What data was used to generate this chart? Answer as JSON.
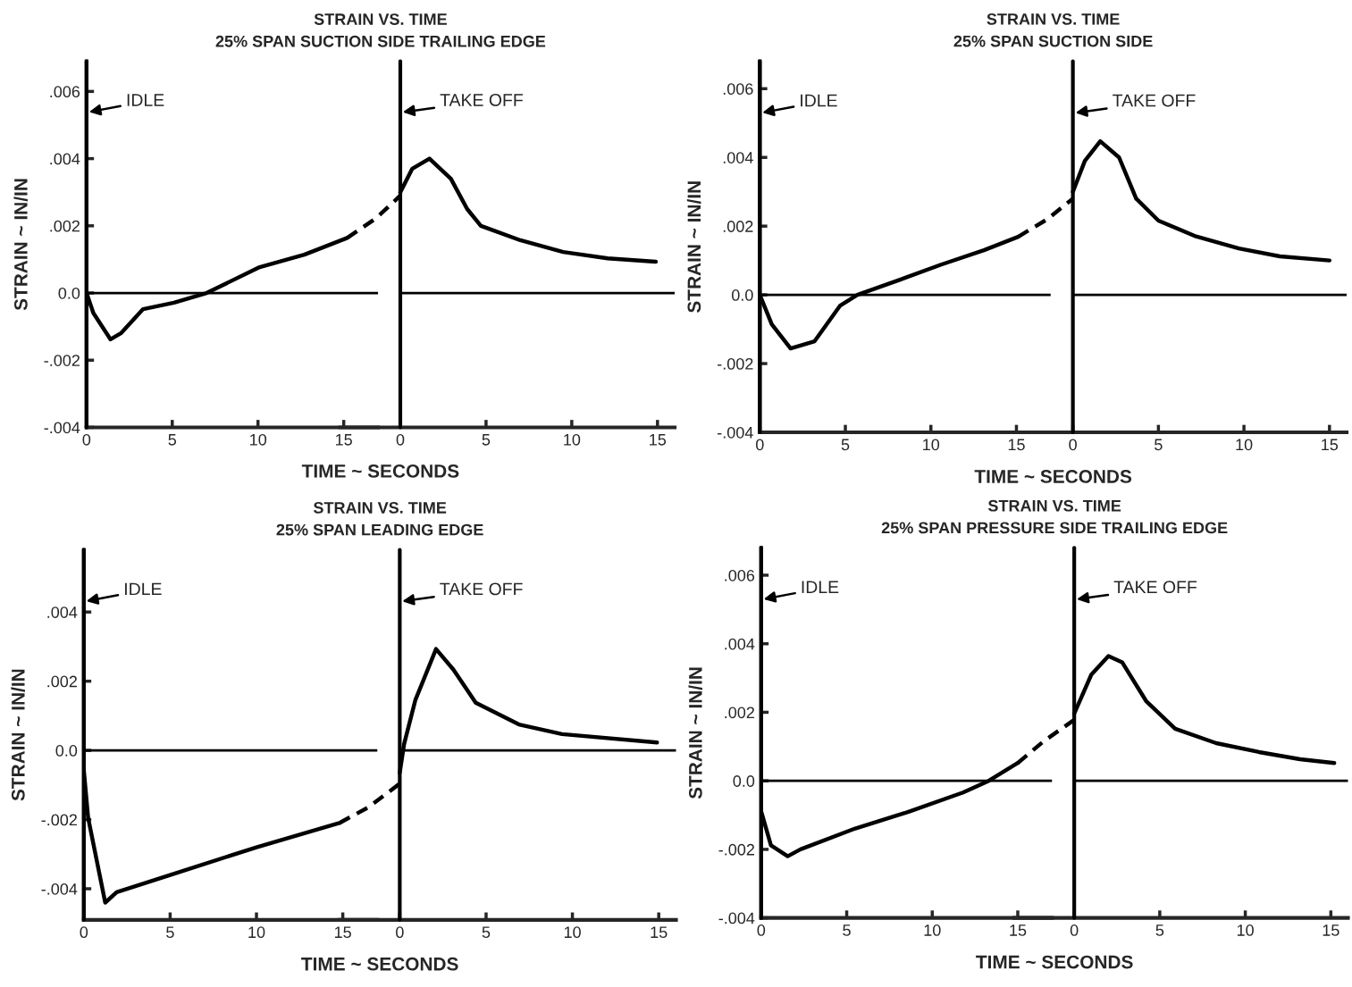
{
  "chart_data": [
    {
      "type": "line",
      "title": "STRAIN VS. TIME",
      "subtitle": "25% SPAN SUCTION SIDE TRAILING EDGE",
      "xlabel": "TIME ~ SECONDS",
      "ylabel": "STRAIN ~ IN/IN",
      "xlim": [
        0,
        17
      ],
      "ylim": [
        -0.004,
        0.0069
      ],
      "xticks": [
        0,
        5,
        10,
        15
      ],
      "yticks": [
        {
          "value": 0.006,
          "label": ".006"
        },
        {
          "value": 0.004,
          "label": ".004"
        },
        {
          "value": 0.002,
          "label": ".002"
        },
        {
          "value": 0,
          "label": "0.0"
        },
        {
          "value": -0.002,
          "label": "-.002"
        },
        {
          "value": -0.004,
          "label": "-.004"
        }
      ],
      "ref_lines": [
        {
          "axis": "y",
          "value": 0
        },
        {
          "axis": "x",
          "value": 0,
          "label": "IDLE"
        }
      ],
      "series": [
        {
          "color": "#000000",
          "line_style": "solid",
          "x": [
            0,
            0.4,
            1.4,
            2.0,
            3.3,
            5.1,
            7.0,
            10.1,
            12.7,
            15.2
          ],
          "values": [
            0,
            -0.0006,
            -0.00138,
            -0.0012,
            -0.00048,
            -0.00029,
            0,
            0.00077,
            0.00114,
            0.00164
          ]
        }
      ]
    },
    {
      "type": "line",
      "xlim": [
        -3.5,
        16
      ],
      "ylim": [
        -0.004,
        0.0069
      ],
      "xticks": [
        0,
        5,
        10,
        15
      ],
      "tick_labels": "x",
      "ref_lines": [
        {
          "axis": "y",
          "value": 0
        },
        {
          "axis": "x",
          "value": 0,
          "label": "TAKE OFF"
        }
      ],
      "series": [
        {
          "color": "#000000",
          "line_style": "dashed",
          "x": [
            -3.1,
            -1.4,
            0
          ],
          "values": [
            0.00164,
            0.00223,
            0.0029
          ]
        },
        {
          "color": "#000000",
          "line_style": "solid",
          "x": [
            0,
            0.7,
            1.7,
            2.95,
            3.9,
            4.7,
            7.0,
            9.5,
            12.1,
            14.9
          ],
          "values": [
            0.003,
            0.0037,
            0.004,
            0.0034,
            0.0025,
            0.002,
            0.00157,
            0.00122,
            0.00103,
            0.00093
          ]
        }
      ]
    },
    {
      "type": "line",
      "title": "STRAIN VS. TIME",
      "subtitle": "25% SPAN SUCTION SIDE",
      "xlabel": "TIME ~ SECONDS",
      "ylabel": "STRAIN ~ IN/IN",
      "xlim": [
        0,
        17
      ],
      "ylim": [
        -0.004,
        0.0068
      ],
      "xticks": [
        0,
        5,
        10,
        15
      ],
      "yticks": [
        {
          "value": 0.006,
          "label": ".006"
        },
        {
          "value": 0.004,
          "label": ".004"
        },
        {
          "value": 0.002,
          "label": ".002"
        },
        {
          "value": 0,
          "label": "0.0"
        },
        {
          "value": -0.002,
          "label": "-.002"
        },
        {
          "value": -0.004,
          "label": "-.004"
        }
      ],
      "ref_lines": [
        {
          "axis": "y",
          "value": 0
        },
        {
          "axis": "x",
          "value": 0,
          "label": "IDLE"
        }
      ],
      "series": [
        {
          "color": "#000000",
          "line_style": "solid",
          "x": [
            0,
            0.7,
            1.8,
            3.2,
            4.7,
            5.7,
            8.2,
            10.6,
            13.1,
            15.1
          ],
          "values": [
            0,
            -0.00086,
            -0.00156,
            -0.00135,
            -0.00031,
            0,
            0.00044,
            0.00088,
            0.0013,
            0.00169
          ]
        }
      ]
    },
    {
      "type": "line",
      "xlim": [
        -3.5,
        16
      ],
      "ylim": [
        -0.004,
        0.0068
      ],
      "xticks": [
        0,
        5,
        10,
        15
      ],
      "tick_labels": "x",
      "ref_lines": [
        {
          "axis": "y",
          "value": 0
        },
        {
          "axis": "x",
          "value": 0,
          "label": "TAKE OFF"
        }
      ],
      "series": [
        {
          "color": "#000000",
          "line_style": "dashed",
          "x": [
            -3.2,
            -1.5,
            0
          ],
          "values": [
            0.00169,
            0.0022,
            0.0028
          ]
        },
        {
          "color": "#000000",
          "line_style": "solid",
          "x": [
            0,
            0.7,
            1.6,
            2.7,
            3.7,
            5.0,
            7.2,
            9.7,
            12.1,
            15.0
          ],
          "values": [
            0.003,
            0.0039,
            0.00447,
            0.004,
            0.0028,
            0.00216,
            0.0017,
            0.00135,
            0.00112,
            0.001
          ]
        }
      ]
    },
    {
      "type": "line",
      "title": "STRAIN VS. TIME",
      "subtitle": "25% SPAN LEADING EDGE",
      "xlabel": "TIME ~ SECONDS",
      "ylabel": "STRAIN ~ IN/IN",
      "xlim": [
        0,
        17
      ],
      "ylim": [
        -0.0049,
        0.0058
      ],
      "xticks": [
        0,
        5,
        10,
        15
      ],
      "yticks": [
        {
          "value": 0.004,
          "label": ".004"
        },
        {
          "value": 0.002,
          "label": ".002"
        },
        {
          "value": 0,
          "label": "0.0"
        },
        {
          "value": -0.002,
          "label": "-.002"
        },
        {
          "value": -0.004,
          "label": "-.004"
        }
      ],
      "ref_lines": [
        {
          "axis": "y",
          "value": 0
        },
        {
          "axis": "x",
          "value": 0,
          "label": "IDLE"
        }
      ],
      "series": [
        {
          "color": "#000000",
          "line_style": "solid",
          "x": [
            0,
            0.25,
            1.24,
            1.9,
            5.0,
            10.0,
            14.8
          ],
          "values": [
            -0.00057,
            -0.00195,
            -0.0044,
            -0.0041,
            -0.0036,
            -0.0028,
            -0.0021
          ]
        }
      ]
    },
    {
      "type": "line",
      "xlim": [
        -3.5,
        16
      ],
      "ylim": [
        -0.0049,
        0.0058
      ],
      "xticks": [
        0,
        5,
        10,
        15
      ],
      "tick_labels": "x",
      "ref_lines": [
        {
          "axis": "y",
          "value": 0
        },
        {
          "axis": "x",
          "value": 0,
          "label": "TAKE OFF"
        }
      ],
      "series": [
        {
          "color": "#000000",
          "line_style": "dashed",
          "x": [
            -3.5,
            -1.8,
            0
          ],
          "values": [
            -0.0021,
            -0.00164,
            -0.00096
          ]
        },
        {
          "color": "#000000",
          "line_style": "solid",
          "x": [
            0,
            0.25,
            0.9,
            2.1,
            3.1,
            4.4,
            6.9,
            9.4,
            14.9
          ],
          "values": [
            -0.00065,
            0.00018,
            0.00145,
            0.00293,
            0.00234,
            0.00138,
            0.00075,
            0.00047,
            0.00023
          ]
        }
      ]
    },
    {
      "type": "line",
      "title": "STRAIN VS. TIME",
      "subtitle": "25% SPAN PRESSURE SIDE TRAILING EDGE",
      "xlabel": "TIME ~ SECONDS",
      "ylabel": "STRAIN ~ IN/IN",
      "xlim": [
        0,
        17
      ],
      "ylim": [
        -0.004,
        0.0068
      ],
      "xticks": [
        0,
        5,
        10,
        15
      ],
      "yticks": [
        {
          "value": 0.006,
          "label": ".006"
        },
        {
          "value": 0.004,
          "label": ".004"
        },
        {
          "value": 0.002,
          "label": ".002"
        },
        {
          "value": 0,
          "label": "0.0"
        },
        {
          "value": -0.002,
          "label": "-.002"
        },
        {
          "value": -0.004,
          "label": "-.004"
        }
      ],
      "ref_lines": [
        {
          "axis": "y",
          "value": 0
        },
        {
          "axis": "x",
          "value": 0,
          "label": "IDLE"
        }
      ],
      "series": [
        {
          "color": "#000000",
          "line_style": "solid",
          "x": [
            0,
            0.57,
            1.55,
            2.3,
            5.5,
            8.4,
            11.8,
            13.3,
            15.0
          ],
          "values": [
            -0.00089,
            -0.00188,
            -0.0022,
            -0.002,
            -0.00139,
            -0.00094,
            -0.00034,
            0,
            0.00052
          ]
        }
      ]
    },
    {
      "type": "line",
      "xlim": [
        -3.5,
        16
      ],
      "ylim": [
        -0.004,
        0.0068
      ],
      "xticks": [
        0,
        5,
        10,
        15
      ],
      "tick_labels": "x",
      "ref_lines": [
        {
          "axis": "y",
          "value": 0
        },
        {
          "axis": "x",
          "value": 0,
          "label": "TAKE OFF"
        }
      ],
      "series": [
        {
          "color": "#000000",
          "line_style": "dashed",
          "x": [
            -3.3,
            -1.8,
            0
          ],
          "values": [
            0.00052,
            0.00115,
            0.00178
          ]
        },
        {
          "color": "#000000",
          "line_style": "solid",
          "x": [
            0,
            1.0,
            2.0,
            2.8,
            4.2,
            5.9,
            8.3,
            10.8,
            13.2,
            15.2
          ],
          "values": [
            0.00196,
            0.0031,
            0.00364,
            0.00346,
            0.00233,
            0.00152,
            0.0011,
            0.00084,
            0.00063,
            0.00052
          ]
        }
      ]
    }
  ]
}
